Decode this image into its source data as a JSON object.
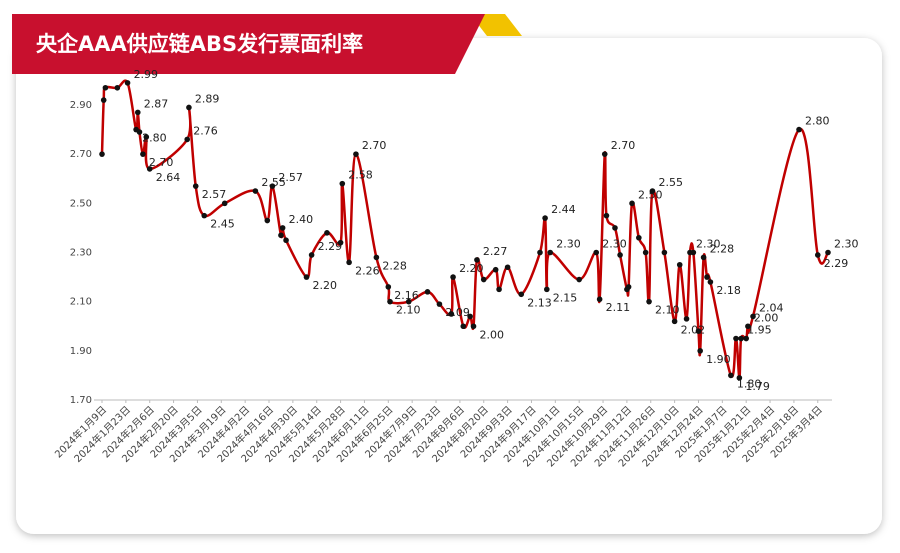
{
  "chart_data": {
    "type": "line",
    "title": "央企AAA供应链ABS发行票面利率",
    "xlim": [
      "2024-01-09",
      "2025-03-10"
    ],
    "xticks": [
      {
        "value": "2024-01-09",
        "label": "2024年1月9日"
      },
      {
        "value": "2024-01-23",
        "label": "2024年1月23日"
      },
      {
        "value": "2024-02-06",
        "label": "2024年2月6日"
      },
      {
        "value": "2024-02-20",
        "label": "2024年2月20日"
      },
      {
        "value": "2024-03-05",
        "label": "2024年3月5日"
      },
      {
        "value": "2024-03-19",
        "label": "2024年3月19日"
      },
      {
        "value": "2024-04-02",
        "label": "2024年4月2日"
      },
      {
        "value": "2024-04-16",
        "label": "2024年4月16日"
      },
      {
        "value": "2024-04-30",
        "label": "2024年4月30日"
      },
      {
        "value": "2024-05-14",
        "label": "2024年5月14日"
      },
      {
        "value": "2024-05-28",
        "label": "2024年5月28日"
      },
      {
        "value": "2024-06-11",
        "label": "2024年6月11日"
      },
      {
        "value": "2024-06-25",
        "label": "2024年6月25日"
      },
      {
        "value": "2024-07-09",
        "label": "2024年7月9日"
      },
      {
        "value": "2024-07-23",
        "label": "2024年7月23日"
      },
      {
        "value": "2024-08-06",
        "label": "2024年8月6日"
      },
      {
        "value": "2024-08-20",
        "label": "2024年8月20日"
      },
      {
        "value": "2024-09-03",
        "label": "2024年9月3日"
      },
      {
        "value": "2024-09-17",
        "label": "2024年9月17日"
      },
      {
        "value": "2024-10-01",
        "label": "2024年10月1日"
      },
      {
        "value": "2024-10-15",
        "label": "2024年10月15日"
      },
      {
        "value": "2024-10-29",
        "label": "2024年10月29日"
      },
      {
        "value": "2024-11-12",
        "label": "2024年11月12日"
      },
      {
        "value": "2024-11-26",
        "label": "2024年11月26日"
      },
      {
        "value": "2024-12-10",
        "label": "2024年12月10日"
      },
      {
        "value": "2024-12-24",
        "label": "2024年12月24日"
      },
      {
        "value": "2025-01-07",
        "label": "2025年1月7日"
      },
      {
        "value": "2025-01-21",
        "label": "2025年1月21日"
      },
      {
        "value": "2025-02-04",
        "label": "2025年2月4日"
      },
      {
        "value": "2025-02-18",
        "label": "2025年2月18日"
      },
      {
        "value": "2025-03-04",
        "label": "2025年3月4日"
      }
    ],
    "ylim": [
      1.7,
      2.9
    ],
    "yticks": [
      {
        "value": 1.7,
        "label": "1.70"
      },
      {
        "value": 1.9,
        "label": "1.90"
      },
      {
        "value": 2.1,
        "label": "2.10"
      },
      {
        "value": 2.3,
        "label": "2.30"
      },
      {
        "value": 2.5,
        "label": "2.50"
      },
      {
        "value": 2.7,
        "label": "2.70"
      },
      {
        "value": 2.9,
        "label": "2.90"
      }
    ],
    "color": "#c00000",
    "x": [
      "2024-01-09",
      "2024-01-10",
      "2024-01-11",
      "2024-01-18",
      "2024-01-24",
      "2024-01-29",
      "2024-01-30",
      "2024-01-31",
      "2024-02-02",
      "2024-02-04",
      "2024-02-06",
      "2024-02-28",
      "2024-02-29",
      "2024-03-04",
      "2024-03-09",
      "2024-03-21",
      "2024-04-08",
      "2024-04-15",
      "2024-04-18",
      "2024-04-23",
      "2024-04-24",
      "2024-04-26",
      "2024-05-08",
      "2024-05-11",
      "2024-05-20",
      "2024-05-28",
      "2024-05-29",
      "2024-06-02",
      "2024-06-06",
      "2024-06-18",
      "2024-06-25",
      "2024-06-26",
      "2024-07-07",
      "2024-07-18",
      "2024-07-25",
      "2024-08-01",
      "2024-08-02",
      "2024-08-08",
      "2024-08-12",
      "2024-08-14",
      "2024-08-16",
      "2024-08-20",
      "2024-08-27",
      "2024-08-29",
      "2024-09-03",
      "2024-09-11",
      "2024-09-22",
      "2024-09-25",
      "2024-09-26",
      "2024-09-28",
      "2024-10-15",
      "2024-10-25",
      "2024-10-27",
      "2024-10-30",
      "2024-10-31",
      "2024-11-05",
      "2024-11-08",
      "2024-11-12",
      "2024-11-13",
      "2024-11-15",
      "2024-11-19",
      "2024-11-23",
      "2024-11-25",
      "2024-11-27",
      "2024-12-04",
      "2024-12-10",
      "2024-12-13",
      "2024-12-17",
      "2024-12-19",
      "2024-12-21",
      "2024-12-24",
      "2024-12-25",
      "2024-12-27",
      "2024-12-29",
      "2024-12-31",
      "2025-01-12",
      "2025-01-15",
      "2025-01-17",
      "2025-01-18",
      "2025-01-21",
      "2025-01-22",
      "2025-01-25",
      "2025-02-21",
      "2025-03-04",
      "2025-03-10"
    ],
    "values": [
      2.7,
      2.92,
      2.97,
      2.97,
      2.99,
      2.8,
      2.87,
      2.79,
      2.7,
      2.77,
      2.64,
      2.76,
      2.89,
      2.57,
      2.45,
      2.5,
      2.55,
      2.43,
      2.57,
      2.37,
      2.4,
      2.35,
      2.2,
      2.29,
      2.38,
      2.34,
      2.58,
      2.26,
      2.7,
      2.28,
      2.16,
      2.1,
      2.1,
      2.14,
      2.09,
      2.05,
      2.2,
      2.0,
      2.04,
      2.0,
      2.27,
      2.19,
      2.23,
      2.15,
      2.24,
      2.13,
      2.3,
      2.44,
      2.15,
      2.3,
      2.19,
      2.3,
      2.11,
      2.7,
      2.45,
      2.4,
      2.29,
      2.15,
      2.16,
      2.5,
      2.36,
      2.3,
      2.1,
      2.55,
      2.3,
      2.02,
      2.25,
      2.03,
      2.3,
      2.3,
      1.98,
      1.9,
      2.28,
      2.2,
      2.18,
      1.8,
      1.95,
      1.79,
      1.95,
      1.95,
      2.0,
      2.04,
      2.8,
      2.29,
      2.3
    ],
    "value_labels": [
      null,
      null,
      null,
      null,
      "2.99",
      "2.80",
      "2.87",
      null,
      "2.70",
      null,
      "2.64",
      "2.76",
      "2.89",
      "2.57",
      "2.45",
      null,
      "2.55",
      null,
      "2.57",
      null,
      "2.40",
      null,
      "2.20",
      "2.29",
      null,
      null,
      "2.58",
      "2.26",
      "2.70",
      "2.28",
      "2.16",
      "2.10",
      null,
      null,
      "2.09",
      null,
      "2.20",
      null,
      null,
      "2.00",
      "2.27",
      null,
      null,
      null,
      null,
      "2.13",
      null,
      "2.44",
      "2.15",
      "2.30",
      null,
      "2.30",
      "2.11",
      "2.70",
      null,
      null,
      null,
      null,
      null,
      "2.50",
      null,
      null,
      "2.10",
      "2.55",
      null,
      "2.02",
      null,
      null,
      "2.30",
      null,
      null,
      "1.90",
      "2.28",
      null,
      "2.18",
      "1.80",
      null,
      "1.79",
      "1.95",
      null,
      "2.00",
      "2.04",
      "2.80",
      "2.29",
      "2.30"
    ]
  }
}
